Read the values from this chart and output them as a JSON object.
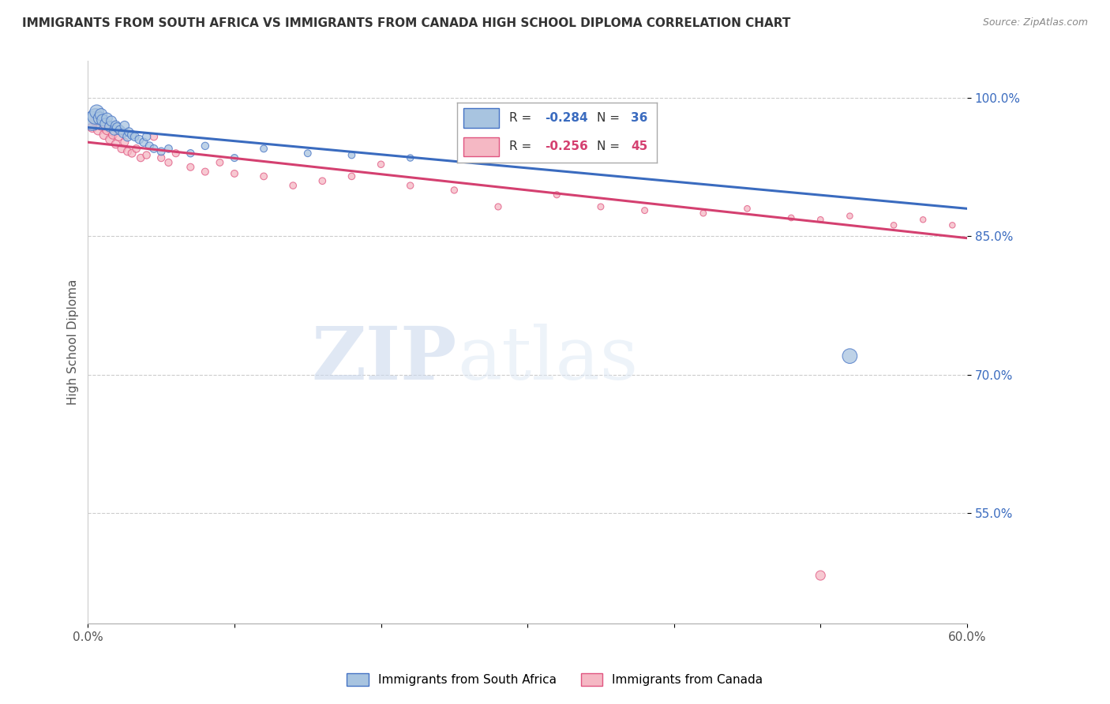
{
  "title": "IMMIGRANTS FROM SOUTH AFRICA VS IMMIGRANTS FROM CANADA HIGH SCHOOL DIPLOMA CORRELATION CHART",
  "source": "Source: ZipAtlas.com",
  "ylabel": "High School Diploma",
  "legend_label1": "Immigrants from South Africa",
  "legend_label2": "Immigrants from Canada",
  "r1": -0.284,
  "n1": 36,
  "r2": -0.256,
  "n2": 45,
  "xmin": 0.0,
  "xmax": 0.6,
  "ymin": 0.43,
  "ymax": 1.04,
  "yticks": [
    0.55,
    0.7,
    0.85,
    1.0
  ],
  "ytick_labels": [
    "55.0%",
    "70.0%",
    "85.0%",
    "100.0%"
  ],
  "xticks": [
    0.0,
    0.1,
    0.2,
    0.3,
    0.4,
    0.5,
    0.6
  ],
  "xtick_labels": [
    "0.0%",
    "",
    "",
    "",
    "",
    "",
    "60.0%"
  ],
  "color_blue": "#a8c4e0",
  "color_pink": "#f5b8c4",
  "color_blue_line": "#3a6bbf",
  "color_pink_line": "#d44070",
  "color_blue_dark": "#4472c4",
  "color_pink_dark": "#e05580",
  "south_africa_x": [
    0.003,
    0.005,
    0.006,
    0.008,
    0.009,
    0.01,
    0.012,
    0.013,
    0.015,
    0.016,
    0.018,
    0.019,
    0.02,
    0.022,
    0.024,
    0.025,
    0.027,
    0.028,
    0.03,
    0.032,
    0.035,
    0.038,
    0.04,
    0.042,
    0.045,
    0.05,
    0.055,
    0.07,
    0.08,
    0.1,
    0.12,
    0.15,
    0.18,
    0.22,
    0.3,
    0.52
  ],
  "south_africa_y": [
    0.975,
    0.98,
    0.985,
    0.978,
    0.982,
    0.976,
    0.972,
    0.978,
    0.969,
    0.975,
    0.965,
    0.97,
    0.968,
    0.965,
    0.962,
    0.97,
    0.958,
    0.963,
    0.96,
    0.958,
    0.955,
    0.952,
    0.958,
    0.948,
    0.945,
    0.942,
    0.945,
    0.94,
    0.948,
    0.935,
    0.945,
    0.94,
    0.938,
    0.935,
    0.935,
    0.72
  ],
  "south_africa_sizes": [
    300,
    200,
    160,
    130,
    120,
    110,
    100,
    95,
    90,
    85,
    80,
    78,
    75,
    75,
    72,
    70,
    68,
    65,
    63,
    60,
    58,
    55,
    55,
    52,
    50,
    50,
    48,
    45,
    45,
    42,
    40,
    40,
    38,
    36,
    35,
    180
  ],
  "canada_x": [
    0.003,
    0.005,
    0.007,
    0.009,
    0.011,
    0.013,
    0.015,
    0.017,
    0.019,
    0.021,
    0.023,
    0.025,
    0.027,
    0.03,
    0.033,
    0.036,
    0.04,
    0.045,
    0.05,
    0.055,
    0.06,
    0.07,
    0.08,
    0.09,
    0.1,
    0.12,
    0.14,
    0.16,
    0.18,
    0.2,
    0.22,
    0.25,
    0.28,
    0.32,
    0.35,
    0.38,
    0.42,
    0.45,
    0.48,
    0.5,
    0.52,
    0.55,
    0.57,
    0.59,
    0.5
  ],
  "canada_y": [
    0.968,
    0.975,
    0.965,
    0.97,
    0.96,
    0.965,
    0.955,
    0.96,
    0.95,
    0.958,
    0.945,
    0.952,
    0.942,
    0.94,
    0.945,
    0.935,
    0.938,
    0.958,
    0.935,
    0.93,
    0.94,
    0.925,
    0.92,
    0.93,
    0.918,
    0.915,
    0.905,
    0.91,
    0.915,
    0.928,
    0.905,
    0.9,
    0.882,
    0.895,
    0.882,
    0.878,
    0.875,
    0.88,
    0.87,
    0.868,
    0.872,
    0.862,
    0.868,
    0.862,
    0.482
  ],
  "canada_sizes": [
    75,
    75,
    72,
    70,
    68,
    65,
    63,
    60,
    58,
    56,
    54,
    52,
    50,
    50,
    48,
    46,
    45,
    45,
    44,
    43,
    42,
    42,
    41,
    40,
    40,
    39,
    38,
    38,
    37,
    36,
    36,
    35,
    34,
    33,
    32,
    32,
    31,
    30,
    30,
    30,
    29,
    29,
    28,
    28,
    75
  ],
  "blue_line_y0": 0.968,
  "blue_line_y1": 0.88,
  "pink_line_y0": 0.952,
  "pink_line_y1": 0.848
}
